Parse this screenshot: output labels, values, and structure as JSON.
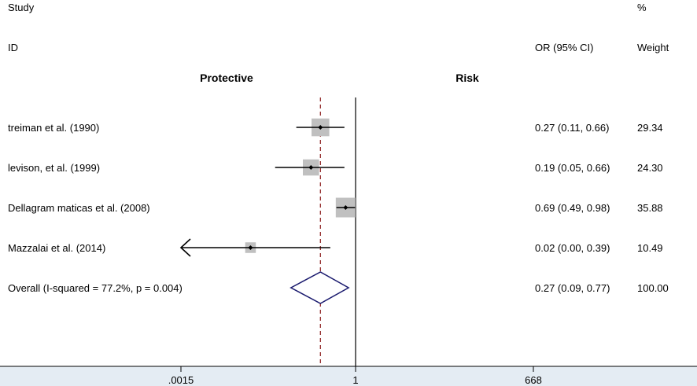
{
  "chart_data": {
    "type": "forest",
    "headers": {
      "study": "Study",
      "id": "ID",
      "or_ci": "OR (95% CI)",
      "weight_pct": "%",
      "weight": "Weight"
    },
    "direction_labels": {
      "left": "Protective",
      "right": "Risk"
    },
    "x_scale": "log",
    "x_ticks": [
      {
        "value": 0.0015,
        "label": ".0015"
      },
      {
        "value": 1,
        "label": "1"
      },
      {
        "value": 668,
        "label": "668"
      }
    ],
    "null_line": 1,
    "overall_line": 0.27,
    "studies": [
      {
        "label": "treiman et al.  (1990)",
        "or": 0.27,
        "lower": 0.11,
        "upper": 0.66,
        "or_ci_text": "0.27 (0.11, 0.66)",
        "weight": 29.34,
        "weight_text": "29.34"
      },
      {
        "label": "levison, et al.  (1999)",
        "or": 0.19,
        "lower": 0.05,
        "upper": 0.66,
        "or_ci_text": "0.19 (0.05, 0.66)",
        "weight": 24.3,
        "weight_text": "24.30"
      },
      {
        "label": "Dellagram maticas et al. (2008)",
        "or": 0.69,
        "lower": 0.49,
        "upper": 0.98,
        "or_ci_text": "0.69 (0.49, 0.98)",
        "weight": 35.88,
        "weight_text": "35.88"
      },
      {
        "label": "Mazzalai et al.  (2014)",
        "or": 0.02,
        "lower": 0.0,
        "upper": 0.39,
        "or_ci_text": "0.02 (0.00, 0.39)",
        "weight": 10.49,
        "weight_text": "10.49",
        "lower_truncated": true
      }
    ],
    "overall": {
      "label": "Overall  (I-squared = 77.2%, p = 0.004)",
      "or": 0.27,
      "lower": 0.09,
      "upper": 0.77,
      "or_ci_text": "0.27 (0.09, 0.77)",
      "weight_text": "100.00"
    },
    "colors": {
      "weight_box": "#c0c0c0",
      "overall_diamond": "#1a1a6e",
      "overall_line": "#8b1a1a",
      "axis_band": "#e4ecf3"
    }
  }
}
